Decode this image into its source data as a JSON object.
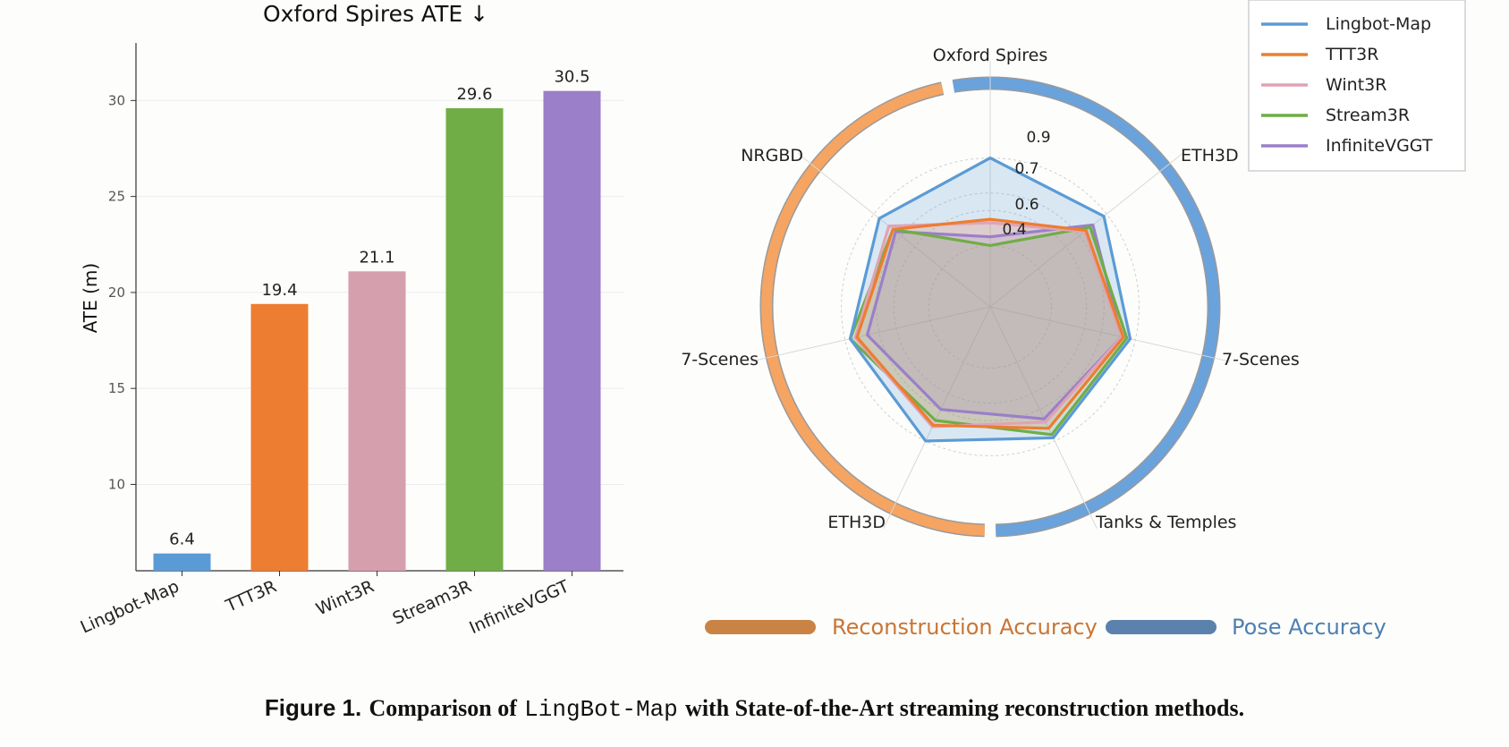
{
  "chart_data": [
    {
      "type": "bar",
      "title": "Oxford Spires ATE ↓",
      "xlabel": "",
      "ylabel": "ATE (m)",
      "categories": [
        "Lingbot-Map",
        "TTT3R",
        "Wint3R",
        "Stream3R",
        "InfiniteVGGT"
      ],
      "values": [
        6.4,
        19.4,
        21.1,
        29.6,
        30.5
      ],
      "data_labels": [
        "6.4",
        "19.4",
        "21.1",
        "29.6",
        "30.5"
      ],
      "colors": [
        "#5b9bd5",
        "#ed7d31",
        "#d59fae",
        "#70ad47",
        "#9b7fc8"
      ],
      "ylim": [
        5.5,
        33
      ],
      "yticks": [
        10,
        15,
        20,
        25,
        30
      ],
      "grid": true
    },
    {
      "type": "radar",
      "axes": [
        "Oxford Spires",
        "ETH3D",
        "7-Scenes",
        "Tanks & Temples",
        "ETH3D",
        "7-Scenes",
        "NRGBD"
      ],
      "r_ticks": [
        "0.4",
        "0.6",
        "0.7",
        "0.9"
      ],
      "series": [
        {
          "name": "Lingbot-Map",
          "color": "#5b9bd5",
          "values": [
            0.9,
            0.88,
            0.87,
            0.88,
            0.9,
            0.87,
            0.86
          ]
        },
        {
          "name": "TTT3R",
          "color": "#ed7d31",
          "values": [
            0.55,
            0.75,
            0.83,
            0.82,
            0.8,
            0.83,
            0.76
          ]
        },
        {
          "name": "Wint3R",
          "color": "#e0a3b4",
          "values": [
            0.53,
            0.74,
            0.82,
            0.78,
            0.81,
            0.84,
            0.79
          ]
        },
        {
          "name": "Stream3R",
          "color": "#70ad47",
          "values": [
            0.4,
            0.78,
            0.85,
            0.86,
            0.77,
            0.87,
            0.76
          ]
        },
        {
          "name": "InfiniteVGGT",
          "color": "#9b7fc8",
          "values": [
            0.45,
            0.8,
            0.82,
            0.76,
            0.7,
            0.77,
            0.74
          ]
        }
      ],
      "legend_position": "top-right",
      "ring_groups": [
        {
          "label": "Reconstruction Accuracy",
          "color": "#f5a462",
          "legend_color": "#c98345",
          "text_color": "#c97535"
        },
        {
          "label": "Pose Accuracy",
          "color": "#6aa2dc",
          "legend_color": "#5b82ad",
          "text_color": "#4e7fb3"
        }
      ]
    }
  ],
  "caption": {
    "label": "Figure 1.",
    "text_before": "Comparison of",
    "code": "LingBot-Map",
    "text_after": "with State-of-the-Art streaming reconstruction methods."
  }
}
